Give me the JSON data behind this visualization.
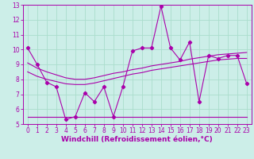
{
  "background_color": "#cceee8",
  "line_color": "#aa00aa",
  "grid_color": "#aaddcc",
  "xlabel": "Windchill (Refroidissement éolien,°C)",
  "xlabel_fontsize": 6.5,
  "tick_fontsize": 5.5,
  "xlim": [
    -0.5,
    23.5
  ],
  "ylim": [
    5,
    13
  ],
  "yticks": [
    5,
    6,
    7,
    8,
    9,
    10,
    11,
    12,
    13
  ],
  "xticks": [
    0,
    1,
    2,
    3,
    4,
    5,
    6,
    7,
    8,
    9,
    10,
    11,
    12,
    13,
    14,
    15,
    16,
    17,
    18,
    19,
    20,
    21,
    22,
    23
  ],
  "series1_x": [
    0,
    1,
    2,
    3,
    4,
    5,
    6,
    7,
    8,
    9,
    10,
    11,
    12,
    13,
    14,
    15,
    16,
    17,
    18,
    19,
    20,
    21,
    22,
    23
  ],
  "series1_y": [
    10.1,
    9.0,
    7.8,
    7.5,
    5.3,
    5.5,
    7.1,
    6.5,
    7.5,
    5.5,
    7.5,
    9.9,
    10.1,
    10.1,
    12.9,
    10.1,
    9.3,
    10.5,
    6.5,
    9.6,
    9.4,
    9.6,
    9.6,
    7.7
  ],
  "series2_x": [
    0,
    1,
    2,
    3,
    4,
    5,
    6,
    7,
    8,
    9,
    10,
    11,
    12,
    13,
    14,
    15,
    16,
    17,
    18,
    19,
    20,
    21,
    22,
    23
  ],
  "series2_y": [
    9.1,
    8.75,
    8.5,
    8.3,
    8.1,
    8.0,
    8.0,
    8.1,
    8.25,
    8.4,
    8.5,
    8.65,
    8.75,
    8.9,
    9.0,
    9.1,
    9.2,
    9.35,
    9.45,
    9.55,
    9.65,
    9.7,
    9.75,
    9.8
  ],
  "series3_x": [
    0,
    1,
    2,
    3,
    4,
    5,
    6,
    7,
    8,
    9,
    10,
    11,
    12,
    13,
    14,
    15,
    16,
    17,
    18,
    19,
    20,
    21,
    22,
    23
  ],
  "series3_y": [
    8.5,
    8.2,
    8.0,
    7.85,
    7.7,
    7.65,
    7.65,
    7.75,
    7.9,
    8.05,
    8.2,
    8.35,
    8.45,
    8.6,
    8.7,
    8.8,
    8.9,
    9.0,
    9.1,
    9.2,
    9.3,
    9.35,
    9.4,
    9.4
  ],
  "series4_x": [
    0,
    10,
    23
  ],
  "series4_y": [
    5.5,
    5.5,
    5.5
  ]
}
